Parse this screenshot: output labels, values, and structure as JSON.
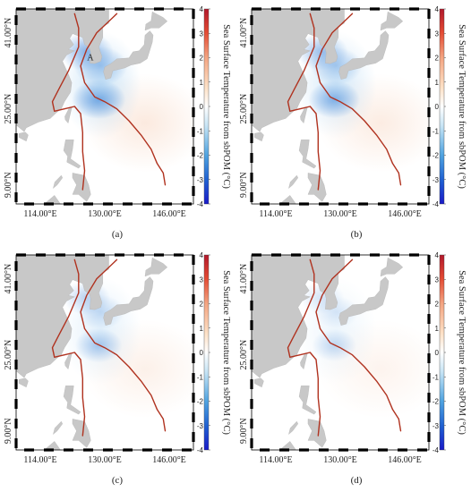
{
  "figure": {
    "colorbar_title": "Sea Surface Temperature from sbPOM (°C)",
    "colorbar_ticks": [
      "4",
      "3",
      "2",
      "1",
      "0",
      "-1",
      "-2",
      "-3",
      "-4"
    ],
    "lon_ticks": [
      "114.00°E",
      "130.00°E",
      "146.00°E"
    ],
    "lat_ticks": [
      "41.00°N",
      "25.00°N",
      "9.00°N"
    ],
    "point_label": "A",
    "colors": {
      "land": "#c8c8c8",
      "ocean": "#ffffff",
      "track": "#b0321f",
      "cool": "#3a7fd6",
      "warm": "#f4c2a3"
    }
  },
  "panels": [
    {
      "label": "(a)",
      "intensity": 1.0
    },
    {
      "label": "(b)",
      "intensity": 0.85
    },
    {
      "label": "(c)",
      "intensity": 0.55
    },
    {
      "label": "(d)",
      "intensity": 0.35
    }
  ],
  "chart_data": {
    "type": "heatmap",
    "title": "",
    "xlabel": "",
    "ylabel": "",
    "colorbar_label": "Sea Surface Temperature from sbPOM (°C)",
    "colorbar_range": [
      -4,
      4
    ],
    "x_ticks": [
      "114.00°E",
      "130.00°E",
      "146.00°E"
    ],
    "y_ticks": [
      "41.00°N",
      "25.00°N",
      "9.00°N"
    ],
    "xlim": [
      108,
      152
    ],
    "ylim": [
      5,
      46
    ],
    "panels": [
      "(a)",
      "(b)",
      "(c)",
      "(d)"
    ],
    "tracks": [
      {
        "lon": [
          133.0,
          130.5,
          128.0,
          125.5,
          124.0,
          125.0,
          127.5,
          130.0,
          133.0,
          136.0,
          139.0,
          141.5,
          143.0,
          144.5,
          145.0
        ],
        "lat": [
          45.0,
          43.0,
          41.0,
          37.5,
          34.0,
          30.5,
          27.5,
          26.5,
          25.0,
          22.5,
          19.5,
          16.5,
          13.5,
          11.5,
          9.0
        ]
      },
      {
        "lon": [
          122.5,
          123.5,
          123.5,
          121.0,
          118.5,
          117.0,
          117.5,
          120.0,
          122.5,
          124.0,
          124.5,
          124.5,
          125.0,
          124.5
        ],
        "lat": [
          45.0,
          42.0,
          38.0,
          33.0,
          29.0,
          26.5,
          24.5,
          25.0,
          25.5,
          24.0,
          20.0,
          16.0,
          12.0,
          8.0
        ]
      }
    ],
    "cold_anomalies_degC": [
      {
        "lon": 128.5,
        "lat": 27.0,
        "value": -2.5
      },
      {
        "lon": 125.5,
        "lat": 37.0,
        "value": -1.5
      },
      {
        "lon": 129.0,
        "lat": 34.0,
        "value": -1.2
      }
    ]
  }
}
